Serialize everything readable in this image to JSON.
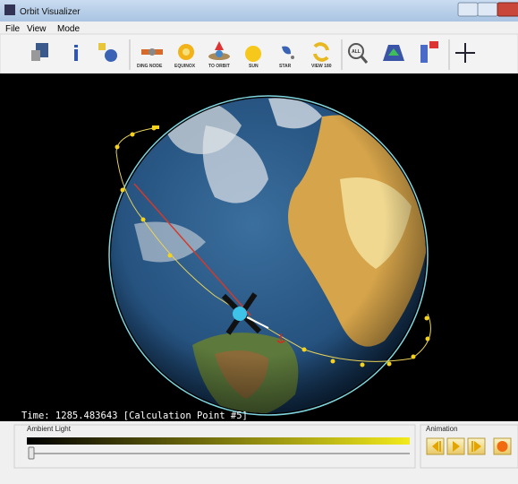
{
  "window": {
    "title": "Orbit Visualizer"
  },
  "menu": [
    "File",
    "View",
    "Mode"
  ],
  "toolbar": [
    "DING NODE",
    "EQUINOX",
    "TO ORBIT",
    "SUN",
    "STAR",
    "VIEW 180",
    "ALL"
  ],
  "status": "Time: 1285.483643 [Calculation Point #5]",
  "panels": {
    "ambient_light": "Ambient Light",
    "animation": "Animation"
  }
}
